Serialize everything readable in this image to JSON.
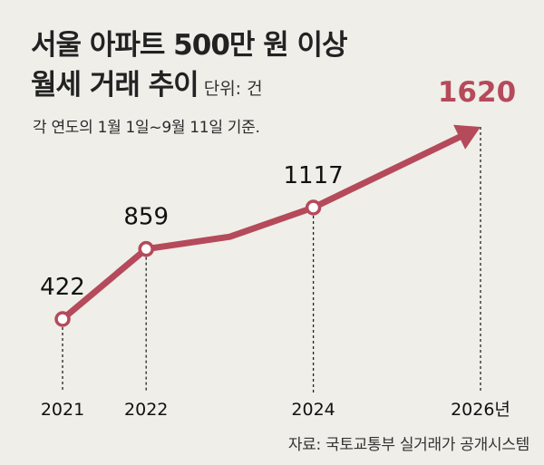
{
  "title": {
    "line1": "서울 아파트 500만 원 이상",
    "line2": "월세 거래 추이",
    "unit": "단위: 건"
  },
  "subtitle": "각 연도의 1월 1일~9월 11일 기준.",
  "source": "자료: 국토교통부 실거래가 공개시스템",
  "colors": {
    "line": "#b54a5a",
    "highlight_label": "#b54a5a",
    "background": "#efeee9"
  },
  "chart_data": {
    "type": "line",
    "x_labels": [
      "2021",
      "2022",
      "2024",
      "2026년"
    ],
    "points": [
      {
        "x": 2021,
        "y": 422,
        "label": "422",
        "marker": true
      },
      {
        "x": 2022,
        "y": 859,
        "label": "859",
        "marker": true
      },
      {
        "x": 2023,
        "y": 935,
        "label": "",
        "marker": false
      },
      {
        "x": 2024,
        "y": 1117,
        "label": "1117",
        "marker": true
      },
      {
        "x": 2026,
        "y": 1620,
        "label": "1620",
        "marker": false,
        "highlight": true,
        "arrow": true
      }
    ],
    "grid": false,
    "legend": "none"
  }
}
